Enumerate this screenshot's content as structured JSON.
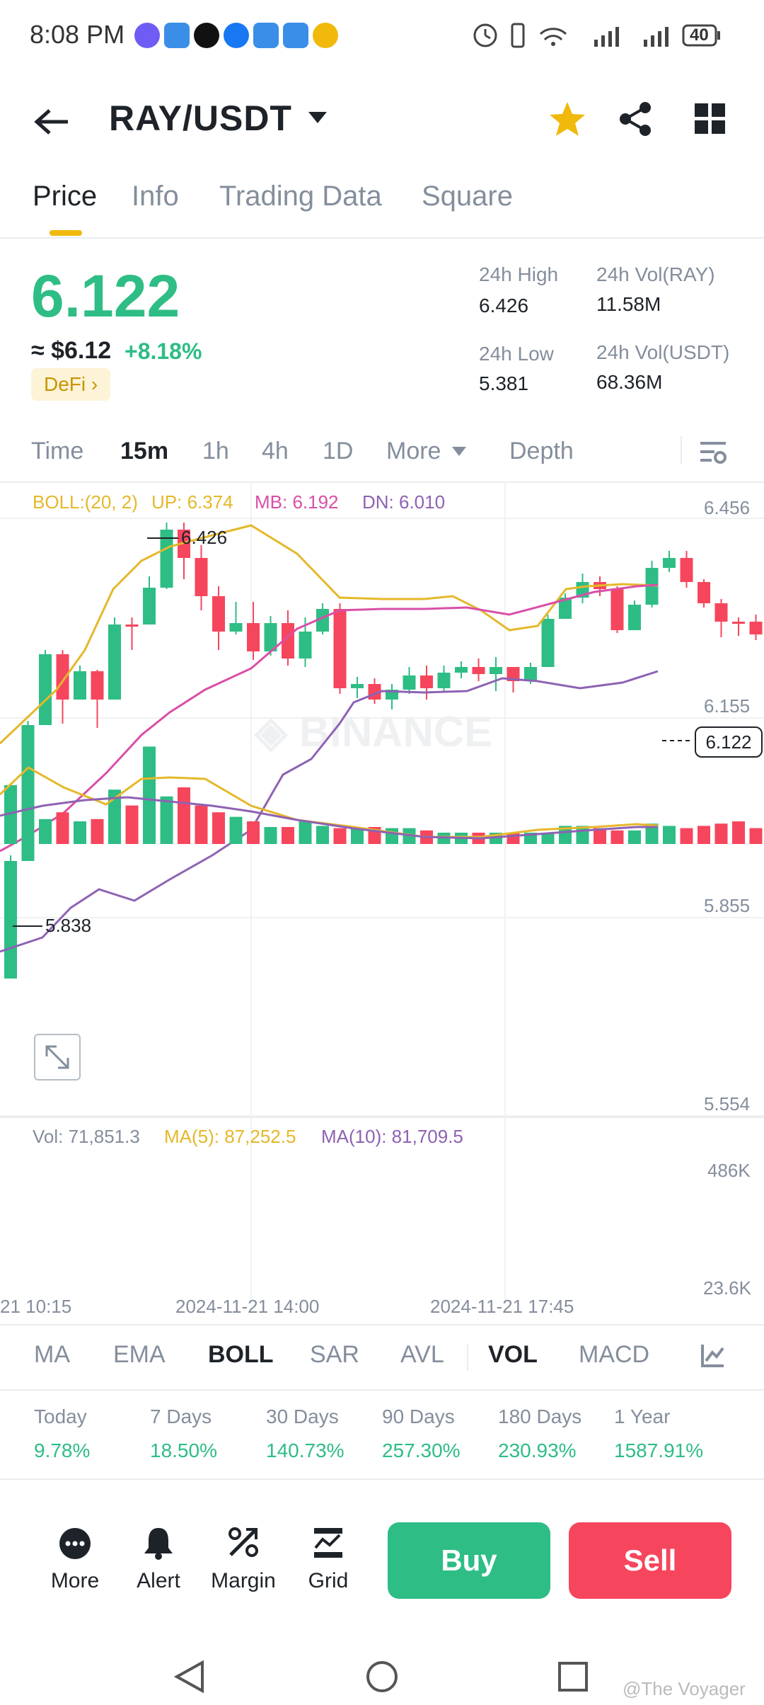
{
  "status_bar": {
    "time": "8:08 PM",
    "battery": "40"
  },
  "header": {
    "pair": "RAY/USDT"
  },
  "tabs": [
    {
      "label": "Price",
      "active": true
    },
    {
      "label": "Info",
      "active": false
    },
    {
      "label": "Trading Data",
      "active": false
    },
    {
      "label": "Square",
      "active": false
    }
  ],
  "price": {
    "last": "6.122",
    "usd": "≈ $6.12",
    "change": "+8.18%",
    "tag": "DeFi",
    "high_label": "24h High",
    "high": "6.426",
    "low_label": "24h Low",
    "low": "5.381",
    "vol_ray_label": "24h Vol(RAY)",
    "vol_ray": "11.58M",
    "vol_usdt_label": "24h Vol(USDT)",
    "vol_usdt": "68.36M"
  },
  "intervals": {
    "items": [
      "Time",
      "15m",
      "1h",
      "4h",
      "1D",
      "More",
      "Depth"
    ],
    "active": "15m"
  },
  "chart": {
    "boll_label": "BOLL:(20, 2)",
    "boll_up": "UP: 6.374",
    "boll_mb": "MB: 6.192",
    "boll_dn": "DN: 6.010",
    "price_axis": [
      "6.456",
      "6.155",
      "5.855",
      "5.554"
    ],
    "current_price_tag": "6.122",
    "high_marker": "6.426",
    "low_marker": "5.838",
    "watermark": "BINANCE",
    "vol_label": "Vol: 71,851.3",
    "vol_ma5": "MA(5): 87,252.5",
    "vol_ma10": "MA(10): 81,709.5",
    "vol_axis": [
      "486K",
      "23.6K"
    ],
    "time_axis": [
      "21 10:15",
      "2024-11-21 14:00",
      "2024-11-21 17:45"
    ],
    "colors": {
      "up": "#2ebd85",
      "down": "#f6465d",
      "boll_up": "#e5b82a",
      "boll_mb": "#d94fa8",
      "boll_dn": "#8e62b3"
    }
  },
  "indicators": {
    "items": [
      "MA",
      "EMA",
      "BOLL",
      "SAR",
      "AVL",
      "VOL",
      "MACD"
    ],
    "active": [
      "BOLL",
      "VOL"
    ]
  },
  "performance": [
    {
      "label": "Today",
      "value": "9.78%"
    },
    {
      "label": "7 Days",
      "value": "18.50%"
    },
    {
      "label": "30 Days",
      "value": "140.73%"
    },
    {
      "label": "90 Days",
      "value": "257.30%"
    },
    {
      "label": "180 Days",
      "value": "230.93%"
    },
    {
      "label": "1 Year",
      "value": "1587.91%"
    }
  ],
  "bottom_bar": {
    "more": "More",
    "alert": "Alert",
    "margin": "Margin",
    "grid": "Grid",
    "buy": "Buy",
    "sell": "Sell"
  },
  "watermark_credit": "@The Voyager"
}
